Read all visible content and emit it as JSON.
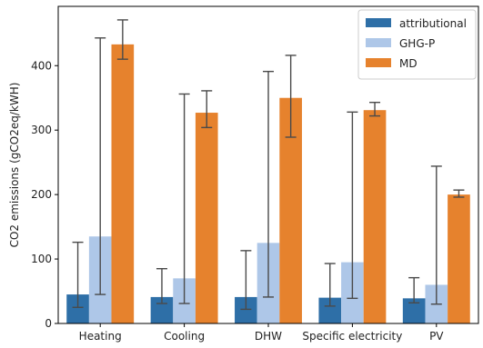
{
  "chart_data": {
    "type": "bar",
    "categories": [
      "Heating",
      "Cooling",
      "DHW",
      "Specific electricity",
      "PV"
    ],
    "series": [
      {
        "name": "attributional",
        "color": "#2e6fa7",
        "values": [
          45,
          41,
          41,
          40,
          39
        ],
        "err_low": [
          25,
          31,
          22,
          27,
          32
        ],
        "err_high": [
          126,
          85,
          113,
          93,
          71
        ]
      },
      {
        "name": "GHG-P",
        "color": "#aec7e8",
        "values": [
          135,
          70,
          125,
          95,
          60
        ],
        "err_low": [
          45,
          31,
          41,
          39,
          30
        ],
        "err_high": [
          443,
          356,
          391,
          328,
          244
        ]
      },
      {
        "name": "MD",
        "color": "#e6822d",
        "values": [
          433,
          327,
          350,
          331,
          200
        ],
        "err_low": [
          410,
          304,
          289,
          322,
          196
        ],
        "err_high": [
          471,
          361,
          416,
          343,
          207
        ]
      }
    ],
    "xlabel": "",
    "ylabel": "CO2 emissions (gCO2eq/kWH)",
    "ylim": [
      0,
      492
    ],
    "yticks": [
      0,
      100,
      200,
      300,
      400
    ],
    "grid": false,
    "legend_position": "top-right",
    "error_bar_color": "#4a4a4a"
  }
}
